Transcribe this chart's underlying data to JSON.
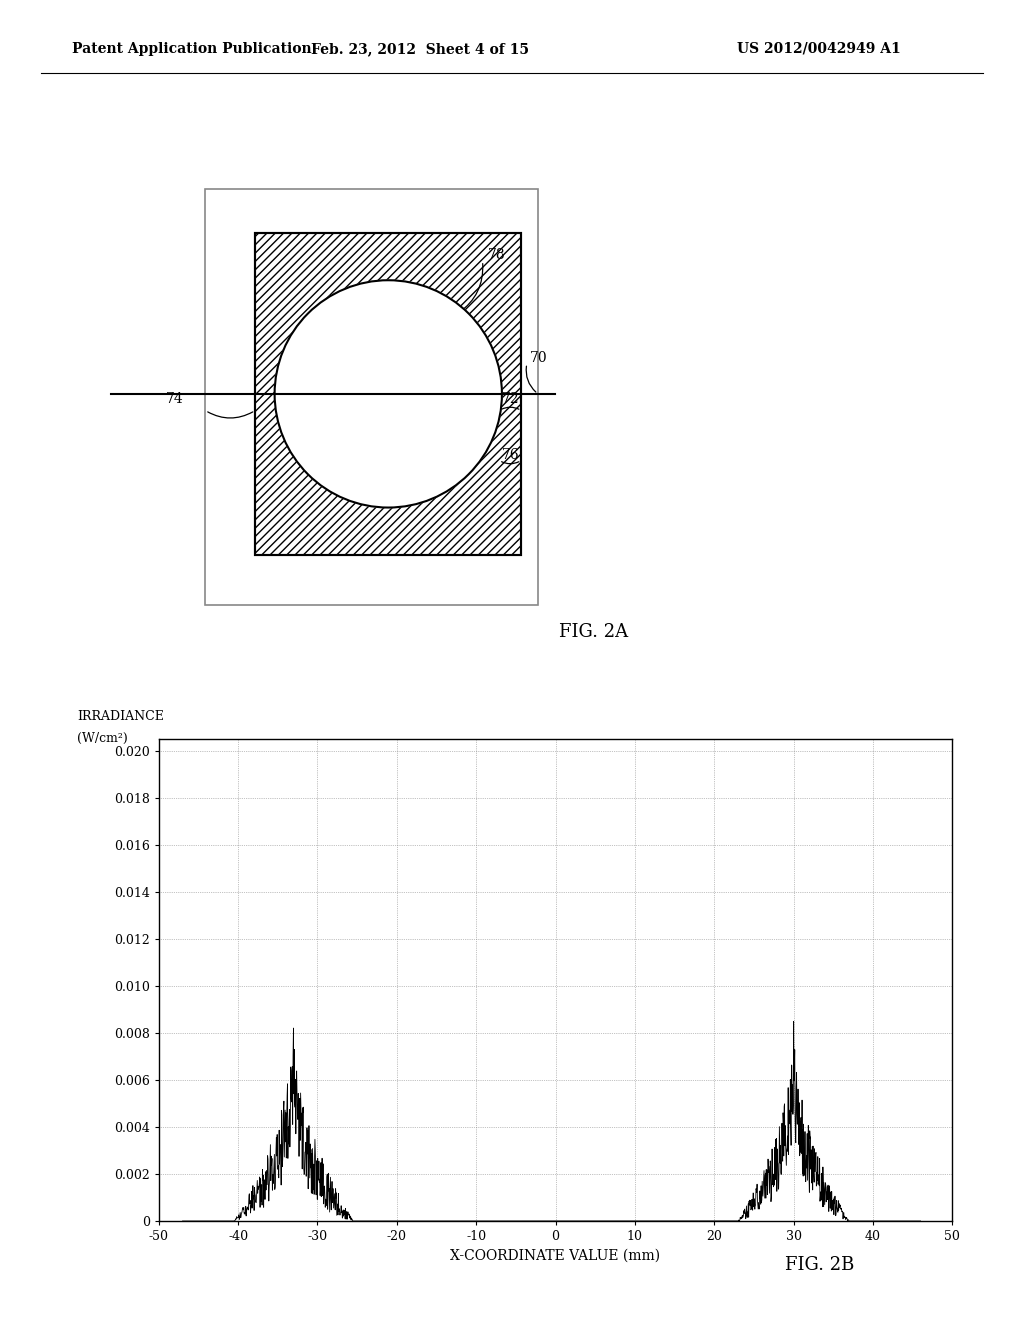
{
  "bg_color": "#ffffff",
  "header_left": "Patent Application Publication",
  "header_center": "Feb. 23, 2012  Sheet 4 of 15",
  "header_right": "US 2012/0042949 A1",
  "fig2a_label": "FIG. 2A",
  "fig2b_label": "FIG. 2B",
  "label_78": "78",
  "label_70": "70",
  "label_72": "72",
  "label_74": "74",
  "label_76": "76",
  "ylabel_line1": "IRRADIANCE",
  "ylabel_line2": "(W/cm²)",
  "xlabel": "X-COORDINATE VALUE (mm)",
  "ytick_labels": [
    "0",
    "0.002",
    "0.004",
    "0.006",
    "0.008",
    "0.010",
    "0.012",
    "0.014",
    "0.016",
    "0.018",
    "0.020"
  ],
  "ytick_vals": [
    0,
    0.002,
    0.004,
    0.006,
    0.008,
    0.01,
    0.012,
    0.014,
    0.016,
    0.018,
    0.02
  ],
  "xtick_vals": [
    -50,
    -40,
    -30,
    -20,
    -10,
    0,
    10,
    20,
    30,
    40,
    50
  ],
  "xlim": [
    -50,
    50
  ],
  "ylim": [
    0,
    0.0205
  ]
}
